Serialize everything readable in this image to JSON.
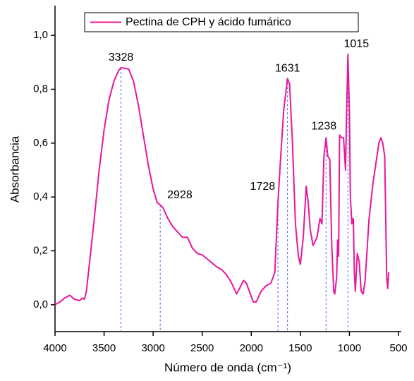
{
  "chart_data": {
    "type": "line",
    "xlabel": "Número de onda (cm⁻¹)",
    "ylabel": "Absorbancia",
    "x_reversed": true,
    "xlim": [
      4000,
      500
    ],
    "ylim": [
      -0.1,
      1.1
    ],
    "xticks": [
      4000,
      3500,
      3000,
      2500,
      2000,
      1500,
      1000,
      500
    ],
    "yticks": [
      {
        "value": 0.0,
        "label": "0,0"
      },
      {
        "value": 0.2,
        "label": "0,2"
      },
      {
        "value": 0.4,
        "label": "0,4"
      },
      {
        "value": 0.6,
        "label": "0,6"
      },
      {
        "value": 0.8,
        "label": "0,8"
      },
      {
        "value": 1.0,
        "label": "1,0"
      }
    ],
    "legend": "upper-center",
    "x": [
      4000,
      3950,
      3900,
      3850,
      3800,
      3750,
      3720,
      3700,
      3680,
      3650,
      3600,
      3550,
      3500,
      3450,
      3400,
      3350,
      3328,
      3250,
      3200,
      3150,
      3100,
      3050,
      3000,
      2960,
      2928,
      2900,
      2850,
      2800,
      2750,
      2700,
      2650,
      2600,
      2550,
      2500,
      2450,
      2400,
      2350,
      2300,
      2250,
      2200,
      2150,
      2120,
      2080,
      2050,
      2000,
      1980,
      1950,
      1900,
      1850,
      1800,
      1760,
      1728,
      1700,
      1670,
      1631,
      1610,
      1580,
      1550,
      1520,
      1500,
      1470,
      1440,
      1420,
      1400,
      1370,
      1330,
      1300,
      1280,
      1260,
      1238,
      1220,
      1200,
      1180,
      1160,
      1150,
      1130,
      1120,
      1110,
      1100,
      1080,
      1060,
      1040,
      1030,
      1015,
      1000,
      990,
      975,
      960,
      950,
      940,
      920,
      900,
      880,
      860,
      840,
      800,
      760,
      720,
      700,
      680,
      660,
      640,
      620,
      610,
      600
    ],
    "series": [
      {
        "name": "Pectina de CPH y ácido fumárico",
        "color": "#e8179b",
        "values": [
          0.0,
          0.01,
          0.025,
          0.035,
          0.02,
          0.015,
          0.025,
          0.02,
          0.05,
          0.15,
          0.32,
          0.5,
          0.65,
          0.76,
          0.83,
          0.87,
          0.88,
          0.875,
          0.83,
          0.74,
          0.63,
          0.52,
          0.43,
          0.38,
          0.37,
          0.36,
          0.32,
          0.29,
          0.27,
          0.25,
          0.25,
          0.21,
          0.19,
          0.185,
          0.17,
          0.155,
          0.14,
          0.13,
          0.11,
          0.08,
          0.04,
          0.06,
          0.09,
          0.08,
          0.03,
          0.01,
          0.01,
          0.05,
          0.07,
          0.08,
          0.12,
          0.38,
          0.55,
          0.72,
          0.84,
          0.82,
          0.6,
          0.3,
          0.18,
          0.15,
          0.25,
          0.44,
          0.38,
          0.28,
          0.22,
          0.25,
          0.32,
          0.3,
          0.55,
          0.62,
          0.55,
          0.54,
          0.22,
          0.05,
          0.04,
          0.1,
          0.24,
          0.18,
          0.63,
          0.62,
          0.62,
          0.5,
          0.7,
          0.93,
          0.72,
          0.4,
          0.3,
          0.32,
          0.12,
          0.05,
          0.19,
          0.16,
          0.05,
          0.04,
          0.09,
          0.32,
          0.45,
          0.55,
          0.6,
          0.62,
          0.6,
          0.55,
          0.1,
          0.06,
          0.12
        ]
      }
    ],
    "annotations": [
      {
        "x": 3328,
        "y": 0.88
      },
      {
        "x": 2928,
        "y": 0.37
      },
      {
        "x": 1728,
        "y": 0.38
      },
      {
        "x": 1631,
        "y": 0.84
      },
      {
        "x": 1238,
        "y": 0.62
      },
      {
        "x": 1015,
        "y": 0.93
      }
    ]
  }
}
